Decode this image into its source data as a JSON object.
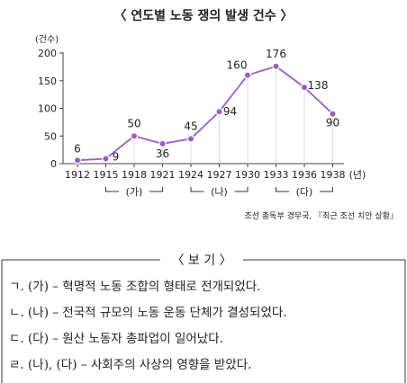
{
  "chart_data": {
    "type": "line",
    "title": "〈 연도별 노동 쟁의 발생 건수 〉",
    "ylabel": "(건수)",
    "x_unit": "(년)",
    "ylim": [
      0,
      200
    ],
    "yticks": [
      "0",
      "50",
      "100",
      "150",
      "200"
    ],
    "categories": [
      "1912",
      "1915",
      "1918",
      "1921",
      "1924",
      "1927",
      "1930",
      "1933",
      "1936",
      "1938"
    ],
    "values": [
      6,
      9,
      50,
      36,
      45,
      94,
      160,
      176,
      138,
      90
    ],
    "data_labels": [
      "6",
      "9",
      "50",
      "36",
      "45",
      "94",
      "160",
      "176",
      "138",
      "90"
    ],
    "periods": [
      {
        "label": "(가)",
        "from": "1915",
        "to": "1921"
      },
      {
        "label": "(나)",
        "from": "1924",
        "to": "1930"
      },
      {
        "label": "(다)",
        "from": "1933",
        "to": "1938"
      }
    ],
    "source": "조선 총독부 경무국, 『최근 조선 치안 상황』",
    "line_color": "#9b5fbf"
  },
  "bogi": {
    "title": "〈 보  기 〉",
    "items": [
      "ㄱ. (가) – 혁명적 노동 조합의 형태로 전개되었다.",
      "ㄴ. (나) – 전국적 규모의 노동 운동 단체가 결성되었다.",
      "ㄷ. (다) – 원산 노동자 총파업이 일어났다.",
      "ㄹ. (나), (다) – 사회주의 사상의 영향을 받았다."
    ]
  }
}
